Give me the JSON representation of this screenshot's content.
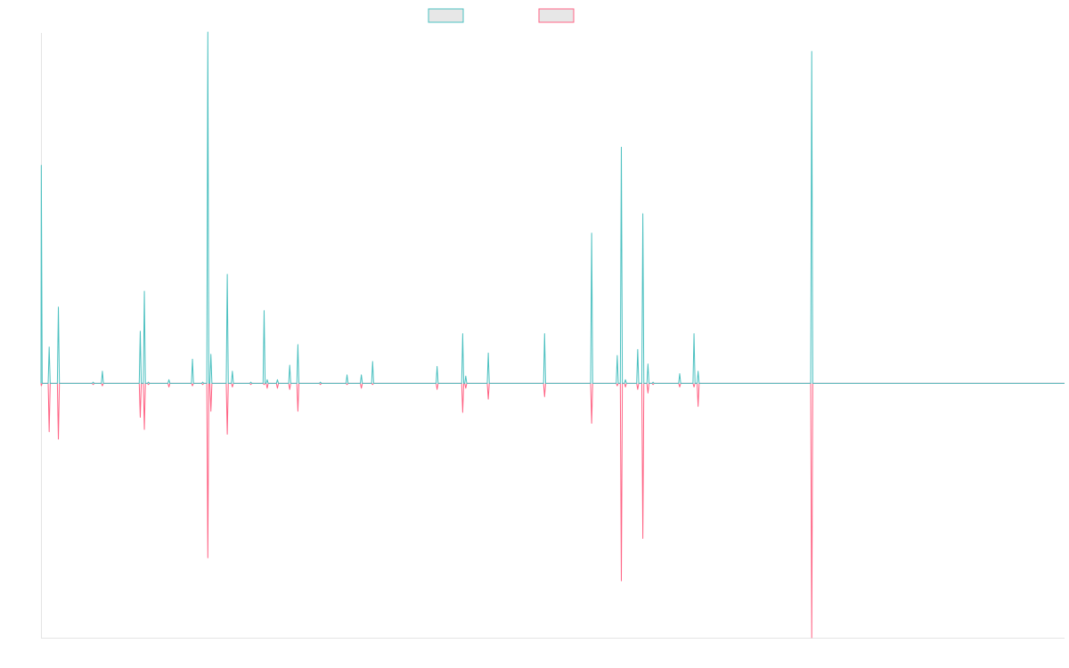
{
  "chart_data": {
    "type": "line",
    "title": "",
    "xlabel": "",
    "ylabel": "",
    "legend_position": "top-center",
    "grid": false,
    "x_range": [
      0,
      1000
    ],
    "ylim": [
      -21,
      29
    ],
    "colors": {
      "series_a": "#4bc0c0",
      "series_b": "#ff6384",
      "legend_fill": "#e7e7e7",
      "axis": "#e4e4e4"
    },
    "series": [
      {
        "points": [
          [
            0,
            0
          ],
          [
            0.3,
            18
          ],
          [
            1.2,
            0
          ],
          [
            7,
            0
          ],
          [
            8,
            3
          ],
          [
            9,
            0
          ],
          [
            16,
            0
          ],
          [
            17,
            6.3
          ],
          [
            18,
            0
          ],
          [
            50,
            0
          ],
          [
            51,
            0.1
          ],
          [
            52,
            0
          ],
          [
            59,
            0
          ],
          [
            60,
            1
          ],
          [
            61,
            0
          ],
          [
            96,
            0
          ],
          [
            97,
            4.3
          ],
          [
            98,
            0
          ],
          [
            100,
            0
          ],
          [
            101,
            7.6
          ],
          [
            102,
            0
          ],
          [
            104,
            0
          ],
          [
            105,
            0.1
          ],
          [
            106,
            0
          ],
          [
            124,
            0
          ],
          [
            125,
            0.3
          ],
          [
            126,
            0
          ],
          [
            147,
            0
          ],
          [
            148,
            2
          ],
          [
            149,
            0
          ],
          [
            157,
            0
          ],
          [
            158,
            0.1
          ],
          [
            159,
            0
          ],
          [
            162,
            0
          ],
          [
            163,
            29
          ],
          [
            164,
            0
          ],
          [
            165,
            0
          ],
          [
            166,
            2.4
          ],
          [
            167,
            0
          ],
          [
            181,
            0
          ],
          [
            182,
            9
          ],
          [
            183,
            0
          ],
          [
            186,
            0
          ],
          [
            187,
            1
          ],
          [
            188,
            0
          ],
          [
            204,
            0
          ],
          [
            205,
            0.1
          ],
          [
            206,
            0
          ],
          [
            217,
            0
          ],
          [
            218,
            6
          ],
          [
            219,
            0
          ],
          [
            220,
            0
          ],
          [
            221,
            0.3
          ],
          [
            222,
            0
          ],
          [
            230,
            0
          ],
          [
            231,
            0.3
          ],
          [
            232,
            0
          ],
          [
            242,
            0
          ],
          [
            243,
            1.5
          ],
          [
            244,
            0
          ],
          [
            250,
            0
          ],
          [
            251,
            3.2
          ],
          [
            252,
            0
          ],
          [
            272,
            0
          ],
          [
            273,
            0.1
          ],
          [
            274,
            0
          ],
          [
            298,
            0
          ],
          [
            299,
            0.7
          ],
          [
            300,
            0
          ],
          [
            312,
            0
          ],
          [
            313,
            0.7
          ],
          [
            314,
            0
          ],
          [
            323,
            0
          ],
          [
            324,
            1.8
          ],
          [
            325,
            0
          ],
          [
            386,
            0
          ],
          [
            387,
            1.4
          ],
          [
            388,
            0
          ],
          [
            411,
            0
          ],
          [
            412,
            4.1
          ],
          [
            413,
            0
          ],
          [
            414,
            0
          ],
          [
            415,
            0.6
          ],
          [
            416,
            0
          ],
          [
            436,
            0
          ],
          [
            437,
            2.5
          ],
          [
            438,
            0
          ],
          [
            491,
            0
          ],
          [
            492,
            4.1
          ],
          [
            493,
            0
          ],
          [
            537,
            0
          ],
          [
            538,
            12.4
          ],
          [
            539,
            0
          ],
          [
            562,
            0
          ],
          [
            563,
            2.3
          ],
          [
            564,
            0
          ],
          [
            566,
            0
          ],
          [
            567,
            19.5
          ],
          [
            568,
            0
          ],
          [
            570,
            0
          ],
          [
            571,
            0.3
          ],
          [
            572,
            0
          ],
          [
            582,
            0
          ],
          [
            583,
            2.8
          ],
          [
            584,
            0
          ],
          [
            587,
            0
          ],
          [
            588,
            14
          ],
          [
            589,
            0
          ],
          [
            592,
            0
          ],
          [
            593,
            1.6
          ],
          [
            594,
            0
          ],
          [
            597,
            0
          ],
          [
            598,
            0.1
          ],
          [
            599,
            0
          ],
          [
            623,
            0
          ],
          [
            624,
            0.8
          ],
          [
            625,
            0
          ],
          [
            637,
            0
          ],
          [
            638,
            4.1
          ],
          [
            639,
            0
          ],
          [
            641,
            0
          ],
          [
            642,
            1
          ],
          [
            643,
            0
          ],
          [
            752,
            0
          ],
          [
            753,
            27.4
          ],
          [
            754,
            0
          ],
          [
            1000,
            0
          ]
        ]
      },
      {
        "points": [
          [
            0,
            0
          ],
          [
            0.3,
            -0.2
          ],
          [
            1.2,
            0
          ],
          [
            7,
            0
          ],
          [
            8,
            -4
          ],
          [
            9,
            0
          ],
          [
            16,
            0
          ],
          [
            17,
            -4.6
          ],
          [
            18,
            0
          ],
          [
            50,
            0
          ],
          [
            51,
            -0.1
          ],
          [
            52,
            0
          ],
          [
            59,
            0
          ],
          [
            60,
            -0.2
          ],
          [
            61,
            0
          ],
          [
            96,
            0
          ],
          [
            97,
            -2.8
          ],
          [
            98,
            0
          ],
          [
            100,
            0
          ],
          [
            101,
            -3.8
          ],
          [
            102,
            0
          ],
          [
            104,
            0
          ],
          [
            105,
            -0.1
          ],
          [
            106,
            0
          ],
          [
            124,
            0
          ],
          [
            125,
            -0.3
          ],
          [
            126,
            0
          ],
          [
            147,
            0
          ],
          [
            148,
            -0.2
          ],
          [
            149,
            0
          ],
          [
            157,
            0
          ],
          [
            158,
            -0.1
          ],
          [
            159,
            0
          ],
          [
            162,
            0
          ],
          [
            163,
            -14.4
          ],
          [
            164,
            0
          ],
          [
            165,
            0
          ],
          [
            166,
            -2.3
          ],
          [
            167,
            0
          ],
          [
            181,
            0
          ],
          [
            182,
            -4.2
          ],
          [
            183,
            0
          ],
          [
            186,
            0
          ],
          [
            187,
            -0.3
          ],
          [
            188,
            0
          ],
          [
            204,
            0
          ],
          [
            205,
            -0.1
          ],
          [
            206,
            0
          ],
          [
            217,
            0
          ],
          [
            218,
            -0.1
          ],
          [
            219,
            0
          ],
          [
            220,
            0
          ],
          [
            221,
            -0.4
          ],
          [
            222,
            0
          ],
          [
            230,
            0
          ],
          [
            231,
            -0.4
          ],
          [
            232,
            0
          ],
          [
            242,
            0
          ],
          [
            243,
            -0.5
          ],
          [
            244,
            0
          ],
          [
            250,
            0
          ],
          [
            251,
            -2.3
          ],
          [
            252,
            0
          ],
          [
            272,
            0
          ],
          [
            273,
            -0.1
          ],
          [
            274,
            0
          ],
          [
            298,
            0
          ],
          [
            299,
            -0.1
          ],
          [
            300,
            0
          ],
          [
            312,
            0
          ],
          [
            313,
            -0.4
          ],
          [
            314,
            0
          ],
          [
            323,
            0
          ],
          [
            324,
            -0.1
          ],
          [
            325,
            0
          ],
          [
            386,
            0
          ],
          [
            387,
            -0.5
          ],
          [
            388,
            0
          ],
          [
            411,
            0
          ],
          [
            412,
            -2.4
          ],
          [
            413,
            0
          ],
          [
            414,
            0
          ],
          [
            415,
            -0.4
          ],
          [
            416,
            0
          ],
          [
            436,
            0
          ],
          [
            437,
            -1.3
          ],
          [
            438,
            0
          ],
          [
            491,
            0
          ],
          [
            492,
            -1.1
          ],
          [
            493,
            0
          ],
          [
            537,
            0
          ],
          [
            538,
            -3.3
          ],
          [
            539,
            0
          ],
          [
            562,
            0
          ],
          [
            563,
            -0.2
          ],
          [
            564,
            0
          ],
          [
            566,
            0
          ],
          [
            567,
            -16.3
          ],
          [
            568,
            0
          ],
          [
            570,
            0
          ],
          [
            571,
            -0.3
          ],
          [
            572,
            0
          ],
          [
            582,
            0
          ],
          [
            583,
            -0.5
          ],
          [
            584,
            0
          ],
          [
            587,
            0
          ],
          [
            588,
            -12.8
          ],
          [
            589,
            0
          ],
          [
            592,
            0
          ],
          [
            593,
            -0.8
          ],
          [
            594,
            0
          ],
          [
            597,
            0
          ],
          [
            598,
            -0.1
          ],
          [
            599,
            0
          ],
          [
            623,
            0
          ],
          [
            624,
            -0.3
          ],
          [
            625,
            0
          ],
          [
            637,
            0
          ],
          [
            638,
            -0.3
          ],
          [
            639,
            0
          ],
          [
            641,
            0
          ],
          [
            642,
            -1.9
          ],
          [
            643,
            0
          ],
          [
            752,
            0
          ],
          [
            753,
            -21
          ],
          [
            754,
            0
          ],
          [
            1000,
            0
          ]
        ]
      }
    ]
  }
}
